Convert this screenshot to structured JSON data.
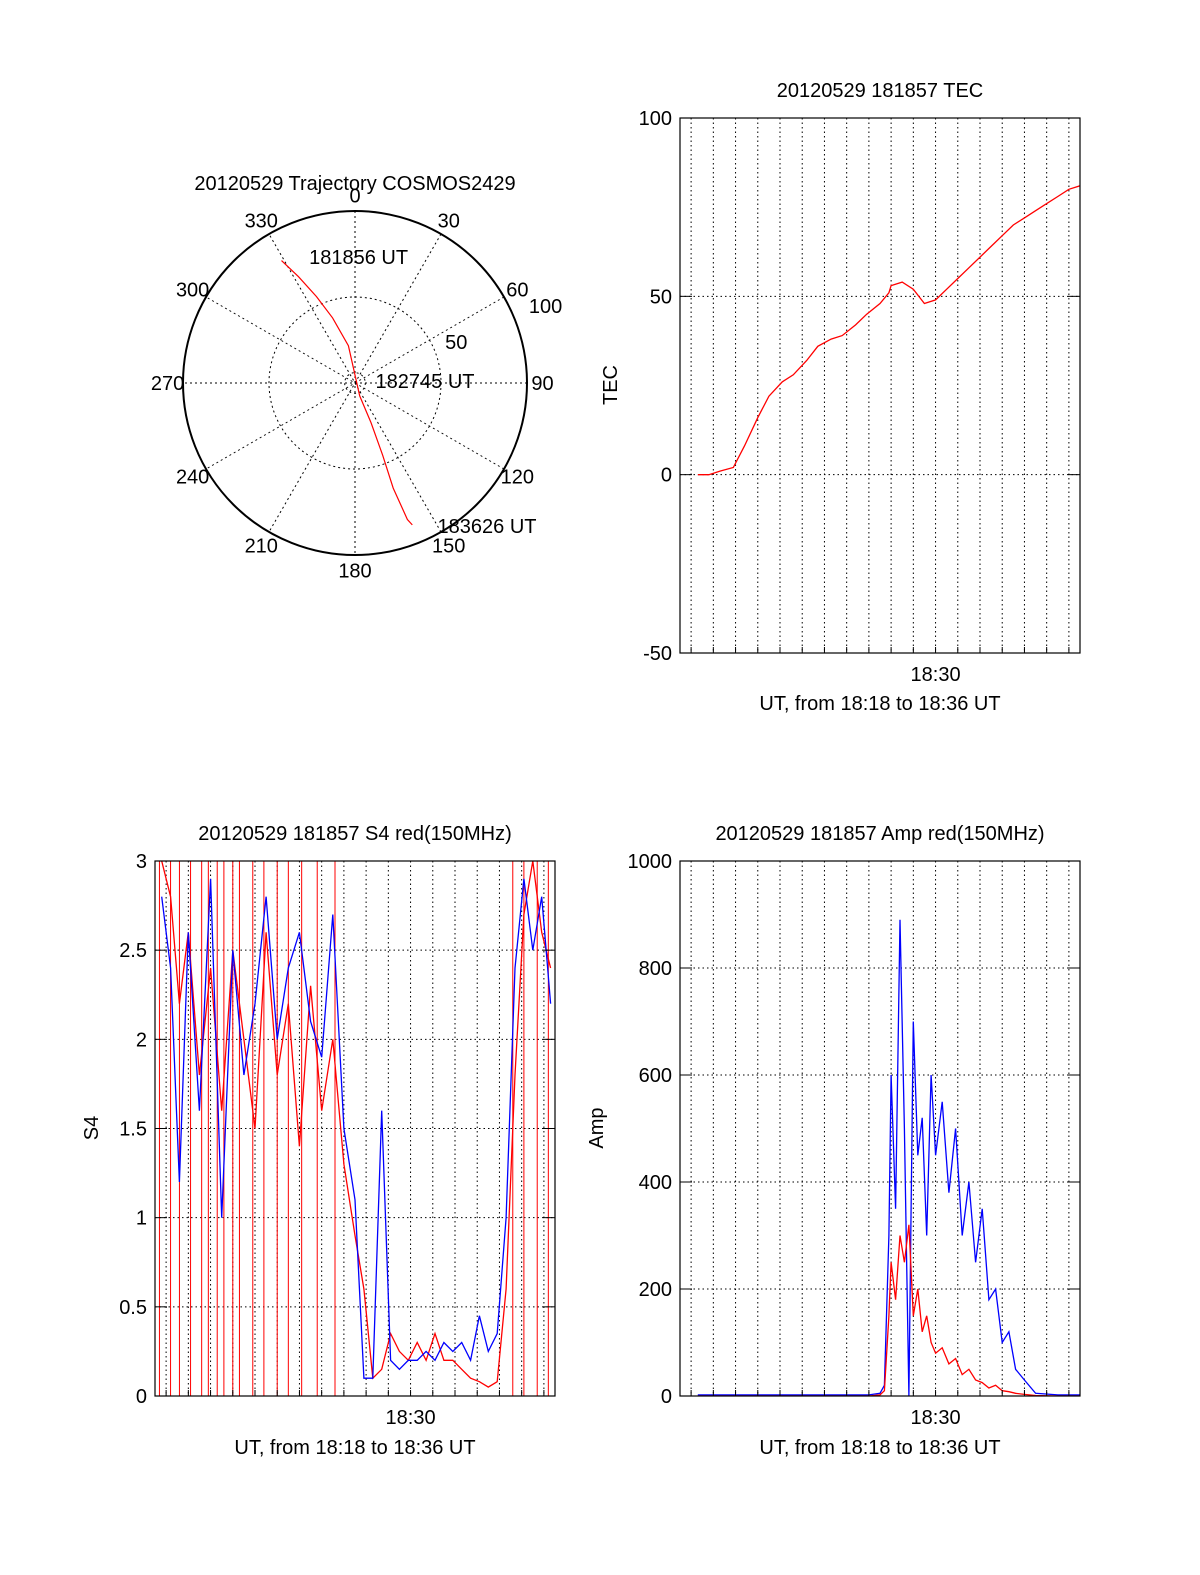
{
  "colors": {
    "red": "#ff0000",
    "blue": "#0000ff",
    "axis": "#000000"
  },
  "chart_data": [
    {
      "id": "polar",
      "type": "polar-trajectory",
      "title": "20120529 Trajectory COSMOS2429",
      "angle_labels": [
        "0",
        "30",
        "60",
        "90",
        "120",
        "150",
        "180",
        "210",
        "240",
        "270",
        "300",
        "330"
      ],
      "radius_max": 100,
      "ring_labels": [
        "50",
        "100"
      ],
      "grid": true,
      "series": [
        {
          "color": "red",
          "points": [
            {
              "az": 329,
              "r": 83
            },
            {
              "az": 332,
              "r": 70
            },
            {
              "az": 336,
              "r": 55
            },
            {
              "az": 341,
              "r": 40
            },
            {
              "az": 350,
              "r": 22
            },
            {
              "az": 160,
              "r": 8
            },
            {
              "az": 158,
              "r": 25
            },
            {
              "az": 159,
              "r": 45
            },
            {
              "az": 160,
              "r": 65
            },
            {
              "az": 159,
              "r": 85
            },
            {
              "az": 158,
              "r": 89
            }
          ]
        }
      ],
      "annotations": [
        {
          "text": "181856 UT",
          "az": 340,
          "r": 78
        },
        {
          "text": "182745 UT",
          "az": 85,
          "r": 12
        },
        {
          "text": "183626 UT",
          "az": 150,
          "r": 96
        }
      ]
    },
    {
      "id": "tec",
      "type": "line",
      "title": "20120529 181857 TEC",
      "xlabel": "UT, from 18:18 to 18:36 UT",
      "ylabel": "TEC",
      "xlim_min": [
        18.5,
        36.5
      ],
      "x_ticks": [
        {
          "x": 30,
          "label": "18:30"
        }
      ],
      "ylim": [
        -50,
        100
      ],
      "y_ticks": [
        -50,
        0,
        50,
        100
      ],
      "grid": true,
      "series": [
        {
          "color": "red",
          "x": [
            19.3,
            19.8,
            20.3,
            20.9,
            21.4,
            22.0,
            22.5,
            23.1,
            23.6,
            24.2,
            24.7,
            25.3,
            25.8,
            26.4,
            26.9,
            27.5,
            27.9,
            28.0,
            28.5,
            29.0,
            29.5,
            30.0,
            30.5,
            31.0,
            31.5,
            32.0,
            32.5,
            33.0,
            33.5,
            34.0,
            34.5,
            35.0,
            35.5,
            36.0,
            36.5
          ],
          "y": [
            0,
            0,
            1,
            2,
            8,
            16,
            22,
            26,
            28,
            32,
            36,
            38,
            39,
            42,
            45,
            48,
            51,
            53,
            54,
            52,
            48,
            49,
            52,
            55,
            58,
            61,
            64,
            67,
            70,
            72,
            74,
            76,
            78,
            80,
            81
          ]
        }
      ]
    },
    {
      "id": "s4",
      "type": "line",
      "title": "20120529 181857 S4 red(150MHz)",
      "xlabel": "UT, from 18:18 to 18:36 UT",
      "ylabel": "S4",
      "xlim_min": [
        18.5,
        36.5
      ],
      "x_ticks": [
        {
          "x": 30,
          "label": "18:30"
        }
      ],
      "ylim": [
        0,
        3
      ],
      "y_ticks": [
        0,
        0.5,
        1,
        1.5,
        2,
        2.5,
        3
      ],
      "grid": true,
      "series": [
        {
          "color": "red",
          "x": [
            18.8,
            19.2,
            19.6,
            20.0,
            20.5,
            21.0,
            21.5,
            22.0,
            22.5,
            23.0,
            23.5,
            24.0,
            24.5,
            25.0,
            25.5,
            26.0,
            26.5,
            27.0,
            27.5,
            27.9,
            28.3,
            28.7,
            29.1,
            29.5,
            29.9,
            30.3,
            30.7,
            31.1,
            31.5,
            31.9,
            32.3,
            32.7,
            33.1,
            33.5,
            33.9,
            34.3,
            34.7,
            35.1,
            35.5,
            35.9,
            36.3
          ],
          "y": [
            3.0,
            2.8,
            2.2,
            2.6,
            1.8,
            2.4,
            1.6,
            2.5,
            2.0,
            1.5,
            2.6,
            1.8,
            2.2,
            1.4,
            2.3,
            1.6,
            2.0,
            1.3,
            0.9,
            0.6,
            0.1,
            0.15,
            0.35,
            0.25,
            0.2,
            0.3,
            0.2,
            0.35,
            0.2,
            0.2,
            0.15,
            0.1,
            0.08,
            0.05,
            0.08,
            0.6,
            1.8,
            2.7,
            3.0,
            2.6,
            2.4
          ]
        },
        {
          "color": "blue",
          "x": [
            18.8,
            19.2,
            19.6,
            20.0,
            20.5,
            21.0,
            21.5,
            22.0,
            22.5,
            23.0,
            23.5,
            24.0,
            24.5,
            25.0,
            25.5,
            26.0,
            26.5,
            27.0,
            27.5,
            27.9,
            28.3,
            28.7,
            29.1,
            29.5,
            29.9,
            30.3,
            30.7,
            31.1,
            31.5,
            31.9,
            32.3,
            32.7,
            33.1,
            33.5,
            33.9,
            34.3,
            34.7,
            35.1,
            35.5,
            35.9,
            36.3
          ],
          "y": [
            2.8,
            2.4,
            1.2,
            2.6,
            1.6,
            2.9,
            1.0,
            2.5,
            1.8,
            2.2,
            2.8,
            2.0,
            2.4,
            2.6,
            2.1,
            1.9,
            2.7,
            1.5,
            1.1,
            0.1,
            0.1,
            1.6,
            0.2,
            0.15,
            0.2,
            0.2,
            0.25,
            0.2,
            0.3,
            0.25,
            0.3,
            0.2,
            0.45,
            0.25,
            0.35,
            1.0,
            2.4,
            2.9,
            2.5,
            2.8,
            2.2
          ]
        }
      ],
      "spike_lines": {
        "color": "red",
        "x": [
          18.7,
          19.2,
          19.6,
          20.1,
          20.6,
          20.9,
          21.3,
          21.6,
          22.0,
          22.3,
          22.9,
          23.4,
          24.0,
          24.5,
          25.1,
          25.8,
          26.6,
          34.6,
          35.1,
          35.7,
          36.2
        ],
        "y_from": 0,
        "y_to": 3
      }
    },
    {
      "id": "amp",
      "type": "line",
      "title": "20120529 181857 Amp red(150MHz)",
      "xlabel": "UT, from 18:18 to 18:36 UT",
      "ylabel": "Amp",
      "xlim_min": [
        18.5,
        36.5
      ],
      "x_ticks": [
        {
          "x": 30,
          "label": "18:30"
        }
      ],
      "ylim": [
        0,
        1000
      ],
      "y_ticks": [
        0,
        200,
        400,
        600,
        800,
        1000
      ],
      "grid": true,
      "series": [
        {
          "color": "blue",
          "x": [
            19.3,
            22.0,
            25.0,
            27.0,
            27.5,
            27.7,
            27.9,
            28.0,
            28.2,
            28.4,
            28.6,
            28.8,
            29.0,
            29.2,
            29.4,
            29.6,
            29.8,
            30.0,
            30.3,
            30.6,
            30.9,
            31.2,
            31.5,
            31.8,
            32.1,
            32.4,
            32.7,
            33.0,
            33.3,
            33.6,
            34.0,
            34.5,
            35.5,
            36.5
          ],
          "y": [
            2,
            2,
            2,
            2,
            5,
            20,
            300,
            600,
            350,
            890,
            500,
            0,
            700,
            450,
            520,
            300,
            600,
            450,
            550,
            380,
            500,
            300,
            400,
            250,
            350,
            180,
            200,
            100,
            120,
            50,
            30,
            5,
            2,
            2
          ]
        },
        {
          "color": "red",
          "x": [
            19.3,
            22.0,
            25.0,
            27.0,
            27.5,
            27.7,
            27.9,
            28.0,
            28.2,
            28.4,
            28.6,
            28.8,
            29.0,
            29.2,
            29.4,
            29.6,
            29.8,
            30.0,
            30.3,
            30.6,
            30.9,
            31.2,
            31.5,
            31.8,
            32.1,
            32.4,
            32.7,
            33.0,
            33.3,
            33.6,
            34.0,
            34.5,
            35.5,
            36.5
          ],
          "y": [
            0,
            0,
            0,
            0,
            2,
            10,
            150,
            250,
            180,
            300,
            250,
            320,
            150,
            200,
            120,
            150,
            100,
            80,
            90,
            60,
            70,
            40,
            50,
            30,
            25,
            15,
            20,
            10,
            8,
            5,
            3,
            1,
            0,
            0
          ]
        }
      ]
    }
  ]
}
